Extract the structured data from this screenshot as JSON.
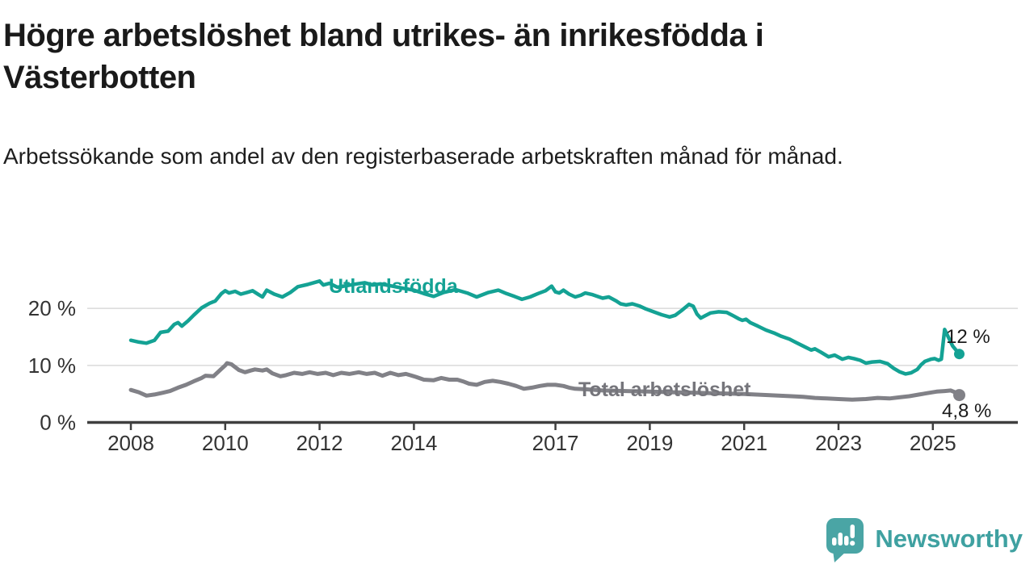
{
  "header": {
    "title": "Högre arbetslöshet bland utrikes- än inrikesfödda i Västerbotten",
    "subtitle": "Arbetssökande som andel av den registerbaserade arbetskraften månad för månad."
  },
  "chart_data": {
    "type": "line",
    "unit": "%",
    "title": "Högre arbetslöshet bland utrikes- än inrikesfödda i Västerbotten",
    "xlabel": "",
    "ylabel": "Arbetssökande som andel av den registerbaserade arbetskraften",
    "x_axis": {
      "range": [
        2007.55,
        2026.2
      ],
      "ticks": [
        {
          "v": 2008,
          "label": "2008"
        },
        {
          "v": 2010,
          "label": "2010"
        },
        {
          "v": 2012,
          "label": "2012"
        },
        {
          "v": 2014,
          "label": "2014"
        },
        {
          "v": 2017,
          "label": "2017"
        },
        {
          "v": 2019,
          "label": "2019"
        },
        {
          "v": 2021,
          "label": "2021"
        },
        {
          "v": 2023,
          "label": "2023"
        },
        {
          "v": 2025,
          "label": "2025"
        }
      ]
    },
    "y_axis": {
      "range": [
        0,
        27
      ],
      "ticks": [
        {
          "v": 0,
          "label": "0 %"
        },
        {
          "v": 10,
          "label": "10 %"
        },
        {
          "v": 20,
          "label": "20 %"
        }
      ],
      "gridlines": [
        10,
        20
      ],
      "grid_color": "#d9d9d9",
      "axis_color": "#3f3f3f",
      "tick_label_color": "#333333"
    },
    "series": [
      {
        "name": "Utlandsfödda",
        "color": "#14a294",
        "label_color": "#14a294",
        "end_label": "12 %",
        "end_value": 12.0,
        "points": [
          [
            2008.0,
            14.4
          ],
          [
            2008.17,
            14.1
          ],
          [
            2008.33,
            13.9
          ],
          [
            2008.5,
            14.4
          ],
          [
            2008.63,
            15.8
          ],
          [
            2008.79,
            16.0
          ],
          [
            2008.92,
            17.2
          ],
          [
            2009.0,
            17.5
          ],
          [
            2009.08,
            16.9
          ],
          [
            2009.21,
            17.8
          ],
          [
            2009.33,
            18.8
          ],
          [
            2009.5,
            20.1
          ],
          [
            2009.67,
            20.9
          ],
          [
            2009.79,
            21.3
          ],
          [
            2009.92,
            22.6
          ],
          [
            2010.0,
            23.1
          ],
          [
            2010.08,
            22.7
          ],
          [
            2010.21,
            23.0
          ],
          [
            2010.33,
            22.5
          ],
          [
            2010.46,
            22.8
          ],
          [
            2010.58,
            23.1
          ],
          [
            2010.71,
            22.4
          ],
          [
            2010.79,
            22.0
          ],
          [
            2010.88,
            23.2
          ],
          [
            2011.04,
            22.5
          ],
          [
            2011.21,
            22.0
          ],
          [
            2011.38,
            22.8
          ],
          [
            2011.54,
            23.8
          ],
          [
            2011.75,
            24.2
          ],
          [
            2012.0,
            24.8
          ],
          [
            2012.08,
            24.1
          ],
          [
            2012.21,
            24.4
          ],
          [
            2012.38,
            23.7
          ],
          [
            2012.58,
            24.0
          ],
          [
            2012.79,
            24.3
          ],
          [
            2012.96,
            24.5
          ],
          [
            2013.13,
            24.1
          ],
          [
            2013.29,
            24.3
          ],
          [
            2013.54,
            23.9
          ],
          [
            2013.79,
            23.5
          ],
          [
            2014.0,
            23.2
          ],
          [
            2014.21,
            22.6
          ],
          [
            2014.42,
            22.1
          ],
          [
            2014.63,
            22.8
          ],
          [
            2014.88,
            23.3
          ],
          [
            2015.13,
            22.7
          ],
          [
            2015.33,
            22.0
          ],
          [
            2015.58,
            22.8
          ],
          [
            2015.79,
            23.2
          ],
          [
            2015.96,
            22.6
          ],
          [
            2016.13,
            22.1
          ],
          [
            2016.29,
            21.6
          ],
          [
            2016.46,
            22.0
          ],
          [
            2016.63,
            22.6
          ],
          [
            2016.79,
            23.1
          ],
          [
            2016.92,
            23.9
          ],
          [
            2017.0,
            22.9
          ],
          [
            2017.08,
            22.7
          ],
          [
            2017.17,
            23.2
          ],
          [
            2017.29,
            22.5
          ],
          [
            2017.42,
            22.0
          ],
          [
            2017.54,
            22.3
          ],
          [
            2017.63,
            22.7
          ],
          [
            2017.79,
            22.4
          ],
          [
            2018.0,
            21.8
          ],
          [
            2018.13,
            22.0
          ],
          [
            2018.29,
            21.3
          ],
          [
            2018.38,
            20.8
          ],
          [
            2018.5,
            20.6
          ],
          [
            2018.63,
            20.8
          ],
          [
            2018.79,
            20.4
          ],
          [
            2018.92,
            19.9
          ],
          [
            2019.08,
            19.4
          ],
          [
            2019.25,
            18.9
          ],
          [
            2019.42,
            18.5
          ],
          [
            2019.54,
            18.8
          ],
          [
            2019.67,
            19.6
          ],
          [
            2019.83,
            20.7
          ],
          [
            2019.92,
            20.4
          ],
          [
            2020.0,
            19.0
          ],
          [
            2020.08,
            18.3
          ],
          [
            2020.17,
            18.7
          ],
          [
            2020.29,
            19.2
          ],
          [
            2020.46,
            19.4
          ],
          [
            2020.63,
            19.3
          ],
          [
            2020.75,
            18.8
          ],
          [
            2020.88,
            18.2
          ],
          [
            2020.96,
            17.9
          ],
          [
            2021.04,
            18.1
          ],
          [
            2021.13,
            17.5
          ],
          [
            2021.29,
            16.9
          ],
          [
            2021.46,
            16.2
          ],
          [
            2021.63,
            15.7
          ],
          [
            2021.79,
            15.1
          ],
          [
            2021.96,
            14.6
          ],
          [
            2022.08,
            14.1
          ],
          [
            2022.25,
            13.4
          ],
          [
            2022.42,
            12.7
          ],
          [
            2022.5,
            12.9
          ],
          [
            2022.63,
            12.3
          ],
          [
            2022.79,
            11.5
          ],
          [
            2022.92,
            11.8
          ],
          [
            2023.08,
            11.1
          ],
          [
            2023.21,
            11.4
          ],
          [
            2023.33,
            11.2
          ],
          [
            2023.46,
            10.9
          ],
          [
            2023.58,
            10.4
          ],
          [
            2023.71,
            10.6
          ],
          [
            2023.88,
            10.7
          ],
          [
            2024.04,
            10.3
          ],
          [
            2024.17,
            9.5
          ],
          [
            2024.29,
            8.9
          ],
          [
            2024.42,
            8.5
          ],
          [
            2024.54,
            8.7
          ],
          [
            2024.67,
            9.3
          ],
          [
            2024.75,
            10.1
          ],
          [
            2024.83,
            10.7
          ],
          [
            2024.96,
            11.1
          ],
          [
            2025.04,
            11.2
          ],
          [
            2025.12,
            10.9
          ],
          [
            2025.18,
            11.1
          ],
          [
            2025.25,
            16.3
          ],
          [
            2025.42,
            13.4
          ],
          [
            2025.56,
            12.0
          ]
        ]
      },
      {
        "name": "Total arbetslöshet",
        "color": "#818187",
        "label_color": "#75757b",
        "end_label": "4,8 %",
        "end_value": 4.8,
        "points": [
          [
            2008.0,
            5.7
          ],
          [
            2008.17,
            5.3
          ],
          [
            2008.33,
            4.7
          ],
          [
            2008.5,
            4.9
          ],
          [
            2008.67,
            5.2
          ],
          [
            2008.83,
            5.5
          ],
          [
            2009.0,
            6.1
          ],
          [
            2009.17,
            6.6
          ],
          [
            2009.33,
            7.2
          ],
          [
            2009.5,
            7.8
          ],
          [
            2009.58,
            8.2
          ],
          [
            2009.75,
            8.1
          ],
          [
            2009.92,
            9.4
          ],
          [
            2010.0,
            10.0
          ],
          [
            2010.04,
            10.4
          ],
          [
            2010.13,
            10.2
          ],
          [
            2010.29,
            9.2
          ],
          [
            2010.42,
            8.8
          ],
          [
            2010.54,
            9.1
          ],
          [
            2010.63,
            9.3
          ],
          [
            2010.79,
            9.1
          ],
          [
            2010.88,
            9.3
          ],
          [
            2011.0,
            8.6
          ],
          [
            2011.17,
            8.1
          ],
          [
            2011.29,
            8.3
          ],
          [
            2011.46,
            8.7
          ],
          [
            2011.63,
            8.5
          ],
          [
            2011.79,
            8.8
          ],
          [
            2011.96,
            8.5
          ],
          [
            2012.13,
            8.7
          ],
          [
            2012.29,
            8.3
          ],
          [
            2012.46,
            8.7
          ],
          [
            2012.63,
            8.5
          ],
          [
            2012.83,
            8.8
          ],
          [
            2013.0,
            8.5
          ],
          [
            2013.17,
            8.7
          ],
          [
            2013.33,
            8.2
          ],
          [
            2013.5,
            8.7
          ],
          [
            2013.67,
            8.3
          ],
          [
            2013.83,
            8.5
          ],
          [
            2014.04,
            8.0
          ],
          [
            2014.21,
            7.5
          ],
          [
            2014.42,
            7.4
          ],
          [
            2014.58,
            7.8
          ],
          [
            2014.75,
            7.5
          ],
          [
            2014.92,
            7.5
          ],
          [
            2015.04,
            7.2
          ],
          [
            2015.17,
            6.8
          ],
          [
            2015.33,
            6.6
          ],
          [
            2015.5,
            7.1
          ],
          [
            2015.67,
            7.3
          ],
          [
            2015.83,
            7.1
          ],
          [
            2016.0,
            6.8
          ],
          [
            2016.17,
            6.4
          ],
          [
            2016.33,
            5.9
          ],
          [
            2016.5,
            6.1
          ],
          [
            2016.67,
            6.4
          ],
          [
            2016.83,
            6.6
          ],
          [
            2017.0,
            6.6
          ],
          [
            2017.17,
            6.4
          ],
          [
            2017.29,
            6.1
          ],
          [
            2017.42,
            5.9
          ],
          [
            2017.67,
            5.8
          ],
          [
            2018.0,
            5.6
          ],
          [
            2018.5,
            5.5
          ],
          [
            2019.0,
            5.4
          ],
          [
            2019.5,
            5.3
          ],
          [
            2020.0,
            5.2
          ],
          [
            2020.5,
            5.1
          ],
          [
            2021.0,
            5.0
          ],
          [
            2021.5,
            4.8
          ],
          [
            2022.0,
            4.6
          ],
          [
            2022.25,
            4.5
          ],
          [
            2022.5,
            4.3
          ],
          [
            2022.75,
            4.2
          ],
          [
            2023.0,
            4.1
          ],
          [
            2023.29,
            4.0
          ],
          [
            2023.58,
            4.1
          ],
          [
            2023.83,
            4.3
          ],
          [
            2024.08,
            4.2
          ],
          [
            2024.29,
            4.4
          ],
          [
            2024.5,
            4.6
          ],
          [
            2024.71,
            4.9
          ],
          [
            2024.92,
            5.2
          ],
          [
            2025.08,
            5.4
          ],
          [
            2025.25,
            5.5
          ],
          [
            2025.38,
            5.6
          ],
          [
            2025.5,
            5.2
          ],
          [
            2025.56,
            4.8
          ]
        ]
      }
    ],
    "legend_position": "inline-on-line",
    "grid": true
  },
  "footer": {
    "brand": "Newsworthy",
    "brand_color": "#3fa1a1",
    "icon_color": "#4aa5a5"
  }
}
